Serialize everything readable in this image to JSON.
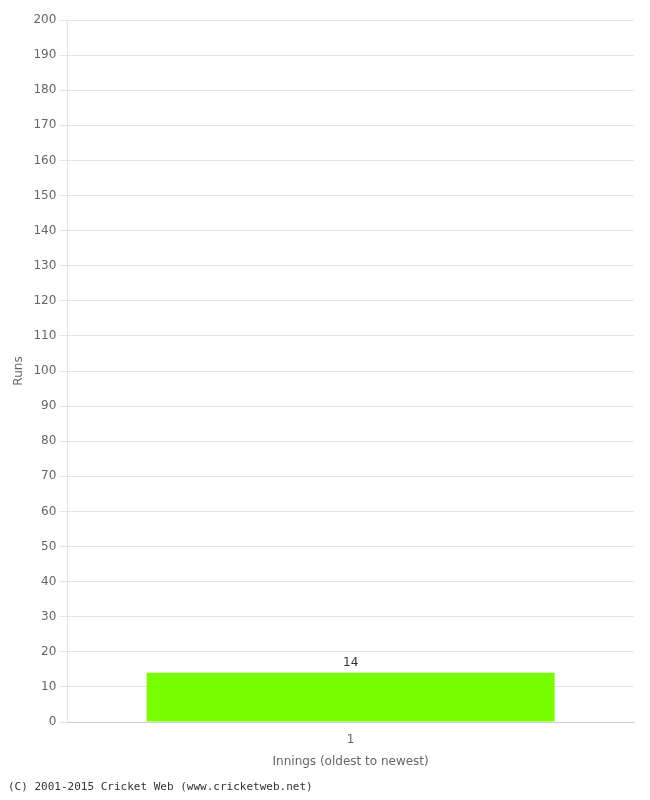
{
  "chart_data": {
    "type": "bar",
    "xlabel": "Innings (oldest to newest)",
    "ylabel": "Runs",
    "categories": [
      "1"
    ],
    "values": [
      14
    ],
    "color": "#77ff00",
    "ylim": [
      0,
      200
    ],
    "yticks": [
      0,
      10,
      20,
      30,
      40,
      50,
      60,
      70,
      80,
      90,
      100,
      110,
      120,
      130,
      140,
      150,
      160,
      170,
      180,
      190,
      200
    ],
    "grid": true,
    "data_labels": true,
    "annotations": [
      "(C) 2001-2015 Cricket Web (www.cricketweb.net)"
    ]
  }
}
